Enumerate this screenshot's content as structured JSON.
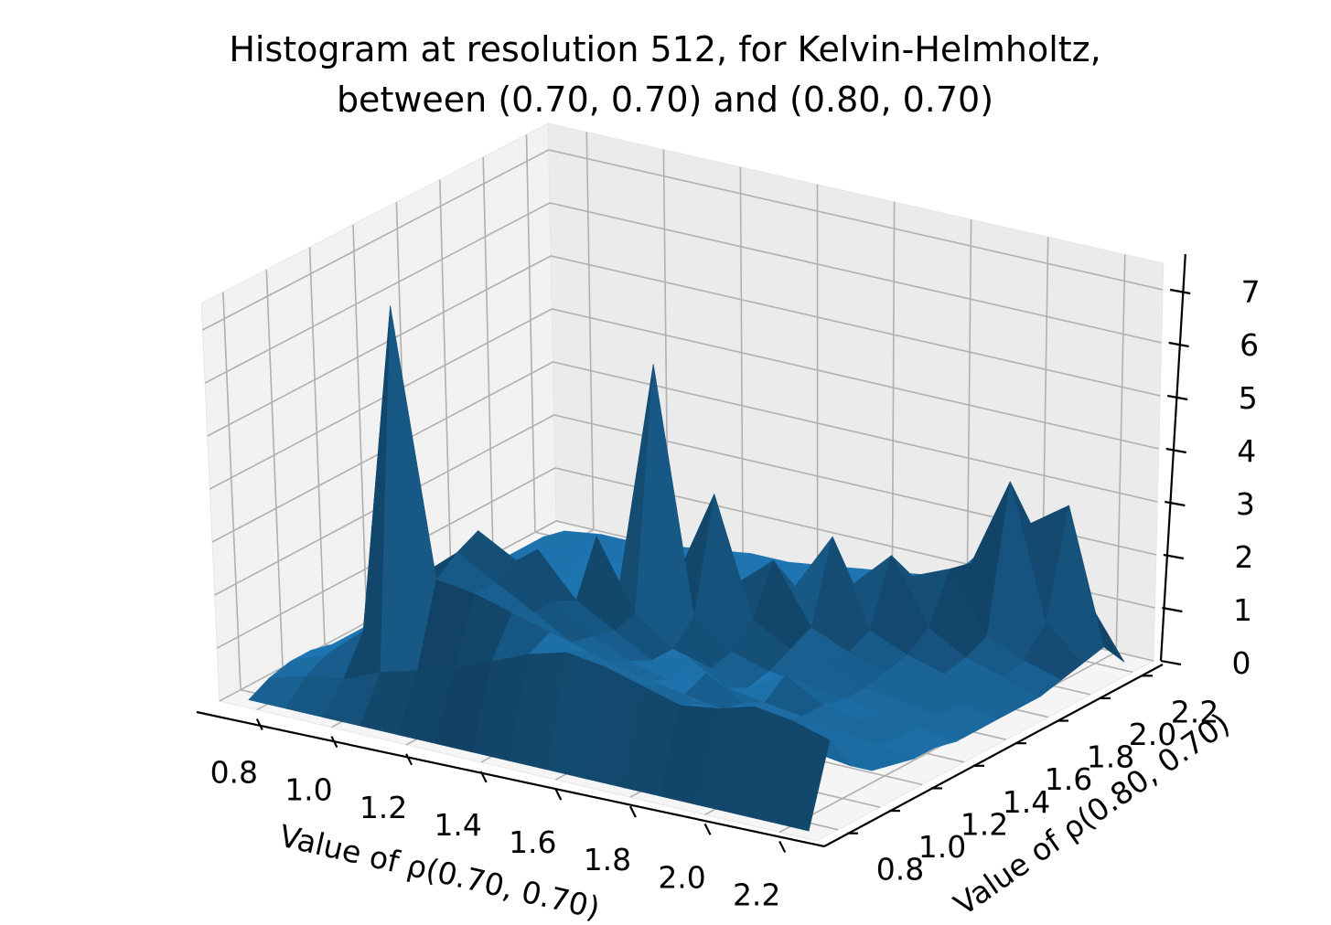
{
  "chart_data": {
    "type": "surface",
    "title_line1": "Histogram at resolution 512, for Kelvin-Helmholtz,",
    "title_line2": "between (0.70, 0.70) and (0.80, 0.70)",
    "xlabel": "Value of ρ(0.70, 0.70)",
    "ylabel": "Value of ρ(0.80, 0.70)",
    "xlim": [
      0.7,
      2.3
    ],
    "ylim": [
      0.7,
      2.3
    ],
    "zlim": [
      0,
      7.5
    ],
    "xticks": [
      "0.8",
      "1.0",
      "1.2",
      "1.4",
      "1.6",
      "1.8",
      "2.0",
      "2.2"
    ],
    "yticks": [
      "0.8",
      "1.0",
      "1.2",
      "1.4",
      "1.6",
      "1.8",
      "2.0",
      "2.2"
    ],
    "zticks": [
      "0",
      "1",
      "2",
      "3",
      "4",
      "5",
      "6",
      "7"
    ],
    "grid": true,
    "surface_color": "#1f77b4",
    "x": [
      0.75,
      0.85,
      0.95,
      1.05,
      1.15,
      1.25,
      1.35,
      1.45,
      1.55,
      1.65,
      1.75,
      1.85,
      1.95,
      2.05,
      2.15,
      2.25
    ],
    "y": [
      0.75,
      0.85,
      0.95,
      1.05,
      1.15,
      1.25,
      1.35,
      1.45,
      1.55,
      1.65,
      1.75,
      1.85,
      1.95,
      2.05,
      2.15,
      2.25
    ],
    "z": [
      [
        0.0,
        0.0,
        0.0,
        0.0,
        0.0,
        0.0,
        0.0,
        0.0,
        0.0,
        0.0,
        0.0,
        0.0,
        0.0,
        0.0,
        0.0,
        0.0
      ],
      [
        0.2,
        0.4,
        0.5,
        0.8,
        1.0,
        1.2,
        1.5,
        1.8,
        2.0,
        1.9,
        1.7,
        1.5,
        1.6,
        1.8,
        1.7,
        1.5
      ],
      [
        0.3,
        0.6,
        1.2,
        7.5,
        2.5,
        2.4,
        2.2,
        2.0,
        1.8,
        1.6,
        1.5,
        1.3,
        1.2,
        1.0,
        0.9,
        0.8
      ],
      [
        0.3,
        0.5,
        1.0,
        2.2,
        2.8,
        2.4,
        2.0,
        1.6,
        1.4,
        1.2,
        1.1,
        1.0,
        0.9,
        0.8,
        0.6,
        0.5
      ],
      [
        0.2,
        0.4,
        0.7,
        1.4,
        3.0,
        2.6,
        2.0,
        1.5,
        1.2,
        1.0,
        1.3,
        0.9,
        0.8,
        0.6,
        0.5,
        0.4
      ],
      [
        0.2,
        0.3,
        0.5,
        1.0,
        1.6,
        2.6,
        1.8,
        1.4,
        1.0,
        1.2,
        0.8,
        0.7,
        0.6,
        0.5,
        0.4,
        0.3
      ],
      [
        0.2,
        0.3,
        0.4,
        0.8,
        1.2,
        1.6,
        2.8,
        1.5,
        1.0,
        0.8,
        0.6,
        1.0,
        0.6,
        0.5,
        0.3,
        0.3
      ],
      [
        0.1,
        0.2,
        0.4,
        0.7,
        1.0,
        1.3,
        1.6,
        6.0,
        1.4,
        0.9,
        0.7,
        0.6,
        0.5,
        0.4,
        0.3,
        0.2
      ],
      [
        0.1,
        0.2,
        0.3,
        0.6,
        0.9,
        1.1,
        1.4,
        1.8,
        3.5,
        1.3,
        0.9,
        0.8,
        0.5,
        0.4,
        0.3,
        0.2
      ],
      [
        0.1,
        0.2,
        0.3,
        0.5,
        0.8,
        1.0,
        1.2,
        1.4,
        1.6,
        2.2,
        1.1,
        0.8,
        0.6,
        0.5,
        0.3,
        0.2
      ],
      [
        0.1,
        0.2,
        0.3,
        0.5,
        0.7,
        0.9,
        1.0,
        1.2,
        1.3,
        1.5,
        2.6,
        1.0,
        0.7,
        0.5,
        0.4,
        0.2
      ],
      [
        0.1,
        0.2,
        0.3,
        0.4,
        0.6,
        0.8,
        0.9,
        1.1,
        1.2,
        1.3,
        1.5,
        2.2,
        1.0,
        0.6,
        0.4,
        0.2
      ],
      [
        0.1,
        0.2,
        0.3,
        0.4,
        0.5,
        0.7,
        0.8,
        0.9,
        1.0,
        1.2,
        1.3,
        1.6,
        1.9,
        0.8,
        0.5,
        0.3
      ],
      [
        0.1,
        0.2,
        0.2,
        0.3,
        0.5,
        0.6,
        0.7,
        0.8,
        0.9,
        1.0,
        1.1,
        1.4,
        1.8,
        3.5,
        1.0,
        0.4
      ],
      [
        0.1,
        0.1,
        0.2,
        0.3,
        0.4,
        0.5,
        0.6,
        0.7,
        0.8,
        0.9,
        1.0,
        1.2,
        2.0,
        2.5,
        3.0,
        0.5
      ],
      [
        0.0,
        0.1,
        0.1,
        0.2,
        0.3,
        0.4,
        0.4,
        0.5,
        0.6,
        0.7,
        0.8,
        0.9,
        1.0,
        1.2,
        1.0,
        0.0
      ]
    ]
  }
}
